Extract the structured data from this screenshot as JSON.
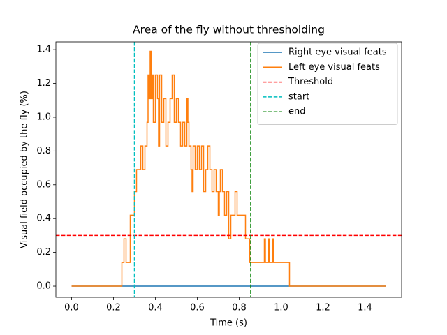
{
  "chart_data": {
    "type": "line",
    "title": "Area of the fly without thresholding",
    "x_label": "Time (s)",
    "y_label": "Visual field occupied by the fly (%)",
    "xlim": [
      -0.075,
      1.575
    ],
    "ylim": [
      -0.066,
      1.446
    ],
    "xticks": [
      {
        "value": 0,
        "label": "0.0"
      },
      {
        "value": 0.2,
        "label": "0.2"
      },
      {
        "value": 0.4,
        "label": "0.4"
      },
      {
        "value": 0.6,
        "label": "0.6"
      },
      {
        "value": 0.8,
        "label": "0.8"
      },
      {
        "value": 1.0,
        "label": "1.0"
      },
      {
        "value": 1.2,
        "label": "1.2"
      },
      {
        "value": 1.4,
        "label": "1.4"
      }
    ],
    "yticks": [
      {
        "value": 0,
        "label": "0.0"
      },
      {
        "value": 0.2,
        "label": "0.2"
      },
      {
        "value": 0.4,
        "label": "0.4"
      },
      {
        "value": 0.6,
        "label": "0.6"
      },
      {
        "value": 0.8,
        "label": "0.8"
      },
      {
        "value": 1.0,
        "label": "1.0"
      },
      {
        "value": 1.2,
        "label": "1.2"
      },
      {
        "value": 1.4,
        "label": "1.4"
      }
    ],
    "grid": false,
    "legend": "upper right",
    "drawstyle": "steps-post",
    "series": [
      {
        "name": "Right eye visual feats",
        "color": "#1f77b4",
        "x": [
          0,
          1.5
        ],
        "values": [
          0,
          0
        ]
      },
      {
        "name": "Left eye visual feats",
        "color": "#ff7f0e",
        "x": [
          0,
          0.24,
          0.25,
          0.26,
          0.28,
          0.3,
          0.31,
          0.33,
          0.34,
          0.35,
          0.36,
          0.365,
          0.37,
          0.375,
          0.38,
          0.385,
          0.39,
          0.4,
          0.41,
          0.415,
          0.42,
          0.43,
          0.44,
          0.45,
          0.46,
          0.47,
          0.48,
          0.49,
          0.5,
          0.51,
          0.52,
          0.53,
          0.54,
          0.55,
          0.555,
          0.56,
          0.57,
          0.575,
          0.58,
          0.59,
          0.6,
          0.61,
          0.62,
          0.63,
          0.64,
          0.65,
          0.66,
          0.67,
          0.68,
          0.69,
          0.7,
          0.705,
          0.71,
          0.72,
          0.73,
          0.74,
          0.75,
          0.76,
          0.78,
          0.79,
          0.83,
          0.85,
          0.92,
          0.925,
          0.94,
          0.945,
          0.96,
          0.965,
          1.04,
          1.5
        ],
        "values": [
          0,
          0.14,
          0.28,
          0.14,
          0.42,
          0.56,
          0.69,
          0.83,
          0.69,
          0.83,
          0.97,
          1.25,
          1.11,
          1.39,
          1.11,
          1.25,
          0.97,
          1.25,
          1.11,
          0.83,
          1.25,
          0.97,
          1.11,
          0.83,
          0.97,
          1.11,
          1.25,
          0.97,
          1.11,
          0.97,
          0.83,
          0.97,
          0.83,
          1.11,
          0.97,
          0.83,
          0.69,
          0.56,
          0.83,
          0.69,
          0.83,
          0.69,
          0.83,
          0.56,
          0.69,
          0.83,
          0.69,
          0.56,
          0.69,
          0.56,
          0.42,
          0.56,
          0.69,
          0.56,
          0.42,
          0.56,
          0.28,
          0.42,
          0.56,
          0.42,
          0.28,
          0.14,
          0.28,
          0.14,
          0.28,
          0.14,
          0.28,
          0.14,
          0,
          0
        ]
      }
    ],
    "hlines": [
      {
        "name": "Threshold",
        "color": "#ff0000",
        "value": 0.3
      }
    ],
    "vlines": [
      {
        "name": "start",
        "color": "#00bfbf",
        "value": 0.3
      },
      {
        "name": "end",
        "color": "#008000",
        "value": 0.855
      }
    ]
  }
}
